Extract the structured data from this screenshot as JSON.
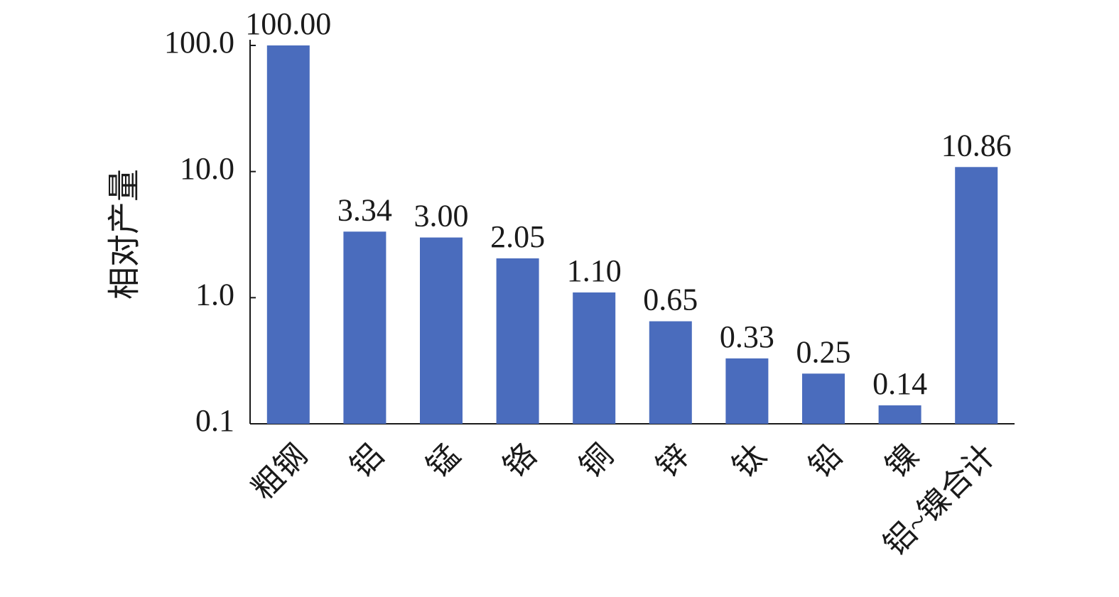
{
  "chart_data": {
    "type": "bar",
    "y_label": "相对产量",
    "categories": [
      "粗钢",
      "铝",
      "锰",
      "铬",
      "铜",
      "锌",
      "钛",
      "铅",
      "镍",
      "铝~镍合计"
    ],
    "values": [
      100,
      3.34,
      3,
      2.05,
      1.1,
      0.65,
      0.33,
      0.25,
      0.14,
      10.86
    ],
    "value_labels": [
      "100.00",
      "3.34",
      "3.00",
      "2.05",
      "1.10",
      "0.65",
      "0.33",
      "0.25",
      "0.14",
      "10.86"
    ],
    "color": "#4a6cbd",
    "log_scale": true,
    "grid": false,
    "ylim": [
      0.1,
      100
    ],
    "yticks": [
      {
        "value": 0.1,
        "label": "0.1"
      },
      {
        "value": 1,
        "label": "1.0"
      },
      {
        "value": 10,
        "label": "10.0"
      },
      {
        "value": 100,
        "label": "100.0"
      }
    ]
  }
}
